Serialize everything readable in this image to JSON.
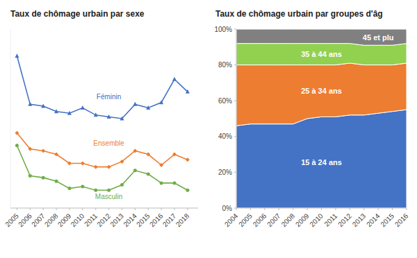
{
  "chart_data": [
    {
      "type": "line",
      "title": "Taux de chômage urbain par sexe",
      "x": [
        2005,
        2006,
        2007,
        2008,
        2009,
        2010,
        2011,
        2012,
        2013,
        2014,
        2015,
        2016,
        2017,
        2018
      ],
      "xlim": [
        2004.5,
        2018.8
      ],
      "xticks": [
        2005,
        2006,
        2007,
        2008,
        2009,
        2010,
        2011,
        2012,
        2013,
        2014,
        2015,
        2016,
        2017,
        2018
      ],
      "ylim": [
        0,
        1.0
      ],
      "tick_labels": "x",
      "grid": false,
      "series": [
        {
          "name": "Féminin",
          "color": "#4472C4",
          "marker": "triangle",
          "values": [
            0.85,
            0.58,
            0.57,
            0.54,
            0.53,
            0.56,
            0.52,
            0.51,
            0.5,
            0.58,
            0.56,
            0.59,
            0.72,
            0.65
          ]
        },
        {
          "name": "Ensemble",
          "color": "#ED7D31",
          "marker": "diamond",
          "values": [
            0.42,
            0.33,
            0.32,
            0.3,
            0.25,
            0.25,
            0.23,
            0.23,
            0.26,
            0.32,
            0.3,
            0.24,
            0.3,
            0.27
          ]
        },
        {
          "name": "Masculin",
          "color": "#70AD47",
          "marker": "circle",
          "values": [
            0.35,
            0.18,
            0.17,
            0.15,
            0.11,
            0.12,
            0.1,
            0.1,
            0.13,
            0.21,
            0.19,
            0.14,
            0.14,
            0.1
          ]
        }
      ]
    },
    {
      "type": "area",
      "stacked": true,
      "title": "Taux de chômage urbain par groupes d'âg",
      "x": [
        2004,
        2005,
        2006,
        2007,
        2008,
        2009,
        2010,
        2011,
        2012,
        2013,
        2014,
        2015,
        2016
      ],
      "xlim": [
        2004,
        2016
      ],
      "xticks": [
        2004,
        2005,
        2006,
        2007,
        2008,
        2009,
        2010,
        2011,
        2012,
        2013,
        2014,
        2015,
        2016
      ],
      "ylim": [
        0,
        1.0
      ],
      "yticks": [
        {
          "value": 0,
          "label": "0%"
        },
        {
          "value": 0.2,
          "label": "20%"
        },
        {
          "value": 0.4,
          "label": "40%"
        },
        {
          "value": 0.6,
          "label": "60%"
        },
        {
          "value": 0.8,
          "label": "80%"
        },
        {
          "value": 1.0,
          "label": "100%"
        }
      ],
      "grid": false,
      "series": [
        {
          "name": "15 à 24 ans",
          "color": "#4472C4",
          "values": [
            0.46,
            0.47,
            0.47,
            0.47,
            0.47,
            0.5,
            0.51,
            0.51,
            0.52,
            0.52,
            0.53,
            0.54,
            0.55
          ]
        },
        {
          "name": "25 à 34 ans",
          "color": "#ED7D31",
          "values": [
            0.34,
            0.33,
            0.33,
            0.33,
            0.33,
            0.3,
            0.29,
            0.29,
            0.29,
            0.28,
            0.27,
            0.26,
            0.26
          ]
        },
        {
          "name": "35 à 44 ans",
          "color": "#92D050",
          "values": [
            0.12,
            0.12,
            0.12,
            0.12,
            0.12,
            0.12,
            0.12,
            0.12,
            0.11,
            0.11,
            0.11,
            0.11,
            0.11
          ]
        },
        {
          "name": "45 et plu",
          "color": "#808080",
          "values": [
            0.08,
            0.08,
            0.08,
            0.08,
            0.08,
            0.08,
            0.08,
            0.08,
            0.08,
            0.09,
            0.09,
            0.09,
            0.08
          ]
        }
      ]
    }
  ]
}
